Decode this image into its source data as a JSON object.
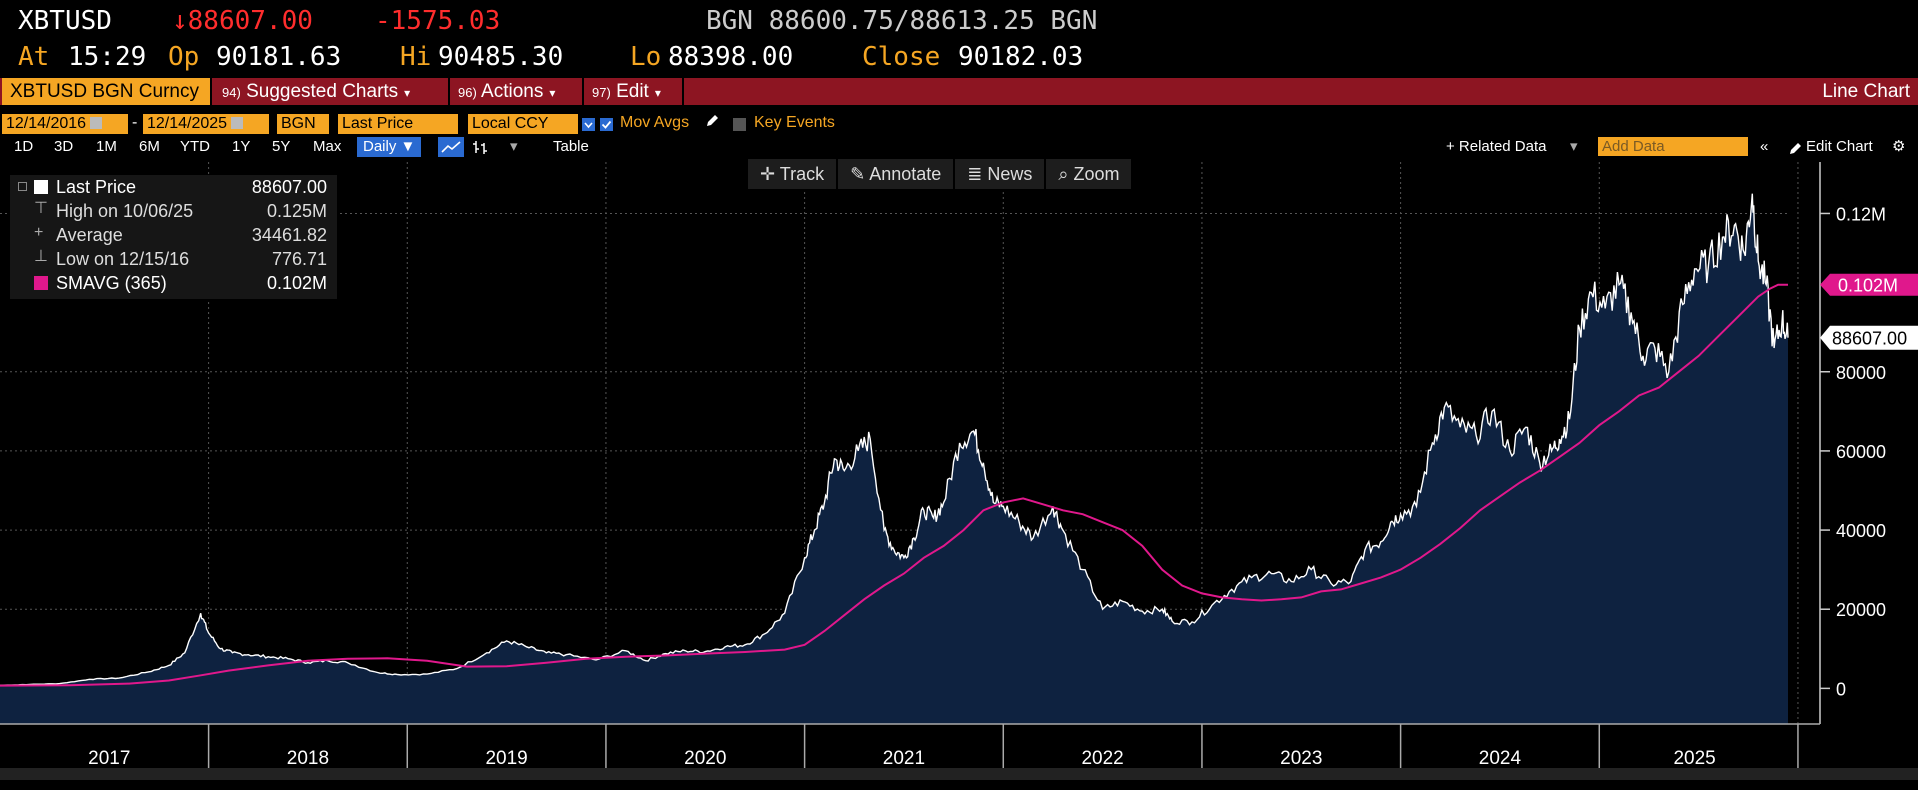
{
  "quote": {
    "ticker": "XBTUSD",
    "arrow": "↓",
    "last": "88607.00",
    "change": "-1575.03",
    "source": "BGN",
    "bid": "88600.75",
    "separator": "/",
    "ask": "88613.25",
    "source2": "BGN",
    "at_label": "At",
    "time": "15:29",
    "op_label": "Op",
    "open": "90181.63",
    "hi_label": "Hi",
    "high": "90485.30",
    "lo_label": "Lo",
    "low": "88398.00",
    "close_label": "Close",
    "close": "90182.03"
  },
  "menu": {
    "security": "XBTUSD BGN Curncy",
    "items": [
      {
        "num": "94)",
        "label": "Suggested Charts"
      },
      {
        "num": "96)",
        "label": "Actions"
      },
      {
        "num": "97)",
        "label": "Edit"
      }
    ],
    "right_label": "Line Chart"
  },
  "params": {
    "start_date": "12/14/2016",
    "dash": "-",
    "end_date": "12/14/2025",
    "source": "BGN",
    "field": "Last Price",
    "currency": "Local CCY",
    "mov_avgs": "Mov Avgs",
    "key_events": "Key Events"
  },
  "ranges": {
    "buttons": [
      "1D",
      "3D",
      "1M",
      "6M",
      "YTD",
      "1Y",
      "5Y",
      "Max"
    ],
    "frequency": "Daily ▼",
    "table": "Table",
    "related": "+ Related Data",
    "add_data_placeholder": "Add Data",
    "edit_chart": "Edit Chart"
  },
  "tools": {
    "track": "Track",
    "annotate": "Annotate",
    "news": "News",
    "zoom": "Zoom"
  },
  "legend": [
    {
      "name": "Last Price",
      "value": "88607.00"
    },
    {
      "name": "High on 10/06/25",
      "value": "0.125M"
    },
    {
      "name": "Average",
      "value": "34461.82"
    },
    {
      "name": "Low on 12/15/16",
      "value": "776.71"
    },
    {
      "name": "SMAVG (365)",
      "value": "0.102M"
    }
  ],
  "colors": {
    "price_line": "#ffffff",
    "price_fill": "#0e2240",
    "sma": "#e0188c",
    "amber": "#f5a623",
    "menubar": "#8d1522"
  },
  "chart_data": {
    "type": "area",
    "title": "XBTUSD BGN Curncy",
    "x_unit": "year",
    "xlim": [
      2016.95,
      2025.96
    ],
    "ylim": [
      -9000,
      133000
    ],
    "y_ticks": [
      0,
      20000,
      40000,
      60000,
      80000
    ],
    "y_tick_labels": [
      "0",
      "20000",
      "40000",
      "60000",
      "80000"
    ],
    "y_top_tick": 120000,
    "y_top_tick_label": "0.12M",
    "x_labels": [
      "2017",
      "2018",
      "2019",
      "2020",
      "2021",
      "2022",
      "2023",
      "2024",
      "2025"
    ],
    "last_label": "88607.00",
    "sma_label": "0.102M",
    "series": [
      {
        "name": "Last Price",
        "x": [
          2016.95,
          2017.1,
          2017.25,
          2017.4,
          2017.55,
          2017.7,
          2017.8,
          2017.88,
          2017.96,
          2018.0,
          2018.06,
          2018.12,
          2018.2,
          2018.3,
          2018.4,
          2018.5,
          2018.6,
          2018.7,
          2018.85,
          2018.95,
          2019.1,
          2019.25,
          2019.4,
          2019.5,
          2019.6,
          2019.7,
          2019.8,
          2019.95,
          2020.1,
          2020.2,
          2020.3,
          2020.4,
          2020.5,
          2020.6,
          2020.7,
          2020.8,
          2020.9,
          2021.0,
          2021.05,
          2021.1,
          2021.15,
          2021.2,
          2021.27,
          2021.33,
          2021.4,
          2021.45,
          2021.5,
          2021.55,
          2021.6,
          2021.65,
          2021.7,
          2021.78,
          2021.85,
          2021.9,
          2021.95,
          2022.0,
          2022.08,
          2022.15,
          2022.25,
          2022.3,
          2022.4,
          2022.5,
          2022.6,
          2022.7,
          2022.8,
          2022.85,
          2022.95,
          2023.05,
          2023.15,
          2023.25,
          2023.35,
          2023.45,
          2023.55,
          2023.65,
          2023.75,
          2023.82,
          2023.9,
          2023.95,
          2024.0,
          2024.08,
          2024.16,
          2024.22,
          2024.3,
          2024.38,
          2024.46,
          2024.55,
          2024.63,
          2024.7,
          2024.76,
          2024.8,
          2024.85,
          2024.9,
          2024.96,
          2025.03,
          2025.1,
          2025.16,
          2025.22,
          2025.28,
          2025.35,
          2025.42,
          2025.48,
          2025.55,
          2025.62,
          2025.68,
          2025.73,
          2025.77,
          2025.8,
          2025.84,
          2025.88,
          2025.92,
          2025.95
        ],
        "values": [
          780,
          1000,
          1200,
          2300,
          2600,
          4200,
          5800,
          9000,
          19000,
          14000,
          10000,
          9000,
          8500,
          8000,
          7500,
          6500,
          7000,
          6500,
          4000,
          3500,
          3600,
          5000,
          9000,
          12000,
          10500,
          9000,
          8500,
          7200,
          9500,
          7000,
          8800,
          9500,
          9300,
          10500,
          11000,
          13800,
          19000,
          33000,
          40000,
          47000,
          58000,
          55000,
          60000,
          63000,
          40000,
          35000,
          33000,
          38000,
          45000,
          43000,
          47000,
          62000,
          65000,
          57000,
          47000,
          46000,
          42000,
          38000,
          46000,
          40000,
          30000,
          20000,
          22000,
          19500,
          20000,
          17000,
          16800,
          21000,
          25000,
          28000,
          29000,
          27000,
          30000,
          26500,
          27000,
          35000,
          37000,
          42000,
          44000,
          46000,
          62000,
          71000,
          66000,
          64000,
          70000,
          60000,
          66000,
          57000,
          60000,
          63000,
          68000,
          91000,
          100000,
          96000,
          102000,
          95000,
          84000,
          86000,
          80000,
          97000,
          106000,
          107000,
          114000,
          117000,
          110000,
          125000,
          108000,
          102000,
          86000,
          93000,
          88607
        ]
      },
      {
        "name": "SMAVG (365)",
        "x": [
          2016.95,
          2017.3,
          2017.6,
          2017.8,
          2017.95,
          2018.1,
          2018.3,
          2018.5,
          2018.7,
          2018.9,
          2019.1,
          2019.3,
          2019.5,
          2019.7,
          2019.9,
          2020.1,
          2020.3,
          2020.5,
          2020.7,
          2020.9,
          2021.0,
          2021.1,
          2021.2,
          2021.3,
          2021.4,
          2021.5,
          2021.6,
          2021.7,
          2021.8,
          2021.9,
          2022.0,
          2022.1,
          2022.2,
          2022.3,
          2022.4,
          2022.5,
          2022.6,
          2022.7,
          2022.8,
          2022.9,
          2023.0,
          2023.1,
          2023.2,
          2023.3,
          2023.4,
          2023.5,
          2023.6,
          2023.7,
          2023.8,
          2023.9,
          2024.0,
          2024.1,
          2024.2,
          2024.3,
          2024.4,
          2024.5,
          2024.6,
          2024.7,
          2024.8,
          2024.9,
          2025.0,
          2025.1,
          2025.2,
          2025.3,
          2025.4,
          2025.5,
          2025.6,
          2025.7,
          2025.8,
          2025.86,
          2025.9,
          2025.95
        ],
        "values": [
          700,
          800,
          1200,
          2000,
          3200,
          4500,
          5800,
          7000,
          7500,
          7600,
          7000,
          5500,
          5600,
          6500,
          7500,
          8000,
          8300,
          8800,
          9200,
          9800,
          11000,
          14500,
          18500,
          22500,
          26000,
          29000,
          33000,
          36000,
          40000,
          45000,
          47000,
          48000,
          46500,
          45000,
          44000,
          42000,
          40000,
          36000,
          30000,
          26000,
          24000,
          23000,
          22500,
          22200,
          22500,
          23000,
          24500,
          25000,
          26500,
          28000,
          30000,
          33000,
          36500,
          40500,
          45000,
          48500,
          52000,
          55000,
          58500,
          62000,
          66500,
          70000,
          74000,
          76000,
          80000,
          84000,
          89000,
          94000,
          99000,
          101000,
          102000,
          102000
        ]
      }
    ]
  }
}
